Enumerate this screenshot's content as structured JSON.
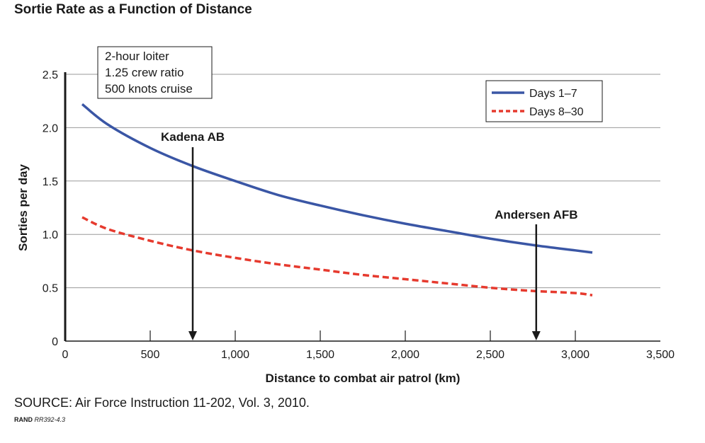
{
  "title": "Sortie Rate as a Function of Distance",
  "source": "SOURCE: Air Force Instruction 11-202, Vol. 3, 2010.",
  "credit": {
    "org": "RAND",
    "id": "RR392-4.3"
  },
  "chart_data": {
    "type": "line",
    "title": "Sortie Rate as a Function of Distance",
    "xlabel": "Distance to combat air patrol (km)",
    "ylabel": "Sorties per day",
    "xlim": [
      0,
      3500
    ],
    "ylim": [
      0,
      2.5
    ],
    "x_ticks": [
      0,
      500,
      1000,
      1500,
      2000,
      2500,
      3000,
      3500
    ],
    "x_tick_labels": [
      "0",
      "500",
      "1,000",
      "1,500",
      "2,000",
      "2,500",
      "3,000",
      "3,500"
    ],
    "y_ticks": [
      0,
      0.5,
      1.0,
      1.5,
      2.0,
      2.5
    ],
    "y_tick_labels": [
      "0",
      "0.5",
      "1.0",
      "1.5",
      "2.0",
      "2.5"
    ],
    "grid": "horizontal",
    "legend_position": "top-right",
    "x": [
      100,
      250,
      500,
      750,
      1000,
      1250,
      1500,
      1750,
      2000,
      2250,
      2500,
      2750,
      3000,
      3100
    ],
    "series": [
      {
        "name": "Days 1–7",
        "color": "#3a56a5",
        "style": "solid",
        "values": [
          2.22,
          2.03,
          1.81,
          1.64,
          1.5,
          1.37,
          1.27,
          1.18,
          1.1,
          1.03,
          0.96,
          0.9,
          0.85,
          0.83
        ]
      },
      {
        "name": "Days 8–30",
        "color": "#e63a2e",
        "style": "dashed",
        "values": [
          1.16,
          1.05,
          0.94,
          0.85,
          0.78,
          0.72,
          0.67,
          0.62,
          0.58,
          0.54,
          0.5,
          0.47,
          0.45,
          0.43
        ]
      }
    ],
    "annotations": {
      "markers": [
        {
          "label": "Kadena AB",
          "x": 750
        },
        {
          "label": "Andersen AFB",
          "x": 2770
        }
      ],
      "note_lines": [
        "2-hour loiter",
        "1.25 crew ratio",
        "500 knots cruise"
      ]
    }
  }
}
